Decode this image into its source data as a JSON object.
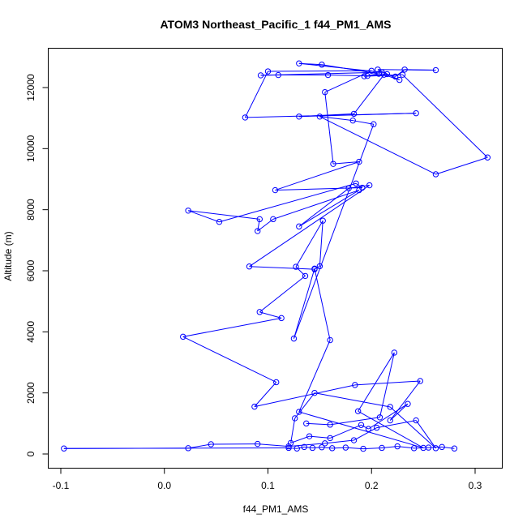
{
  "chart_data": {
    "type": "scatter",
    "title": "ATOM3 Northeast_Pacific_1 f44_PM1_AMS",
    "xlabel": "f44_PM1_AMS",
    "ylabel": "Altitude (m)",
    "xlim": [
      -0.1,
      0.32
    ],
    "ylim": [
      0,
      13000
    ],
    "x_ticks": [
      -0.1,
      0.0,
      0.1,
      0.2,
      0.3
    ],
    "x_tick_labels": [
      "-0.1",
      "0.0",
      "0.1",
      "0.2",
      "0.3"
    ],
    "y_ticks": [
      0,
      2000,
      4000,
      6000,
      8000,
      10000,
      12000
    ],
    "y_tick_labels": [
      "0",
      "2000",
      "4000",
      "6000",
      "8000",
      "10000",
      "12000"
    ],
    "grid": false,
    "legend": "none",
    "marker": "open-circle",
    "connected_by_lines": true,
    "color": "#0000ff",
    "series": [
      {
        "x": [
          0.28,
          0.268,
          0.255,
          0.241,
          0.225,
          0.21,
          0.192,
          0.175,
          0.162,
          0.152,
          0.143,
          0.135,
          0.128,
          0.12,
          -0.097,
          0.023,
          0.045,
          0.09,
          0.12,
          0.155,
          0.183,
          0.205,
          0.243,
          0.262,
          0.218,
          0.145,
          0.126,
          0.122,
          0.14,
          0.16,
          0.19,
          0.197,
          0.235,
          0.218,
          0.247,
          0.184,
          0.087,
          0.108,
          0.018,
          0.113,
          0.092,
          0.136,
          0.127,
          0.153,
          0.15,
          0.145,
          0.082,
          0.198,
          0.178,
          0.13,
          0.188,
          0.105,
          0.09,
          0.092,
          0.023,
          0.053,
          0.185,
          0.191,
          0.107,
          0.188,
          0.163,
          0.155,
          0.2,
          0.1,
          0.078,
          0.243,
          0.13,
          0.183,
          0.212,
          0.227,
          0.206,
          0.262,
          0.232,
          0.223,
          0.215,
          0.196,
          0.158,
          0.11,
          0.093,
          0.21,
          0.13,
          0.152,
          0.207,
          0.193,
          0.23,
          0.312,
          0.262,
          0.15,
          0.182,
          0.202,
          0.125,
          0.145,
          0.16,
          0.13,
          0.25,
          0.187,
          0.222,
          0.208,
          0.16,
          0.137
        ],
        "y": [
          180,
          230,
          210,
          190,
          250,
          200,
          170,
          210,
          190,
          220,
          200,
          230,
          180,
          200,
          180,
          190,
          320,
          330,
          250,
          350,
          450,
          860,
          1100,
          190,
          1540,
          2000,
          1170,
          360,
          580,
          520,
          950,
          820,
          1640,
          1100,
          2390,
          2260,
          1550,
          2350,
          3840,
          4450,
          4650,
          5830,
          6130,
          7640,
          6150,
          6050,
          6140,
          8800,
          8700,
          7450,
          8640,
          7690,
          7300,
          7690,
          7970,
          7600,
          8860,
          8720,
          8640,
          9570,
          9500,
          11850,
          12550,
          12530,
          11020,
          11160,
          11050,
          11140,
          12420,
          12250,
          12590,
          12570,
          12590,
          12360,
          12440,
          12380,
          12410,
          12410,
          12400,
          12500,
          12790,
          12750,
          12450,
          12370,
          12420,
          9710,
          9160,
          11050,
          10920,
          10800,
          3780,
          6070,
          3730,
          1380,
          200,
          1400,
          3320,
          1200,
          960,
          1000
        ]
      }
    ]
  }
}
